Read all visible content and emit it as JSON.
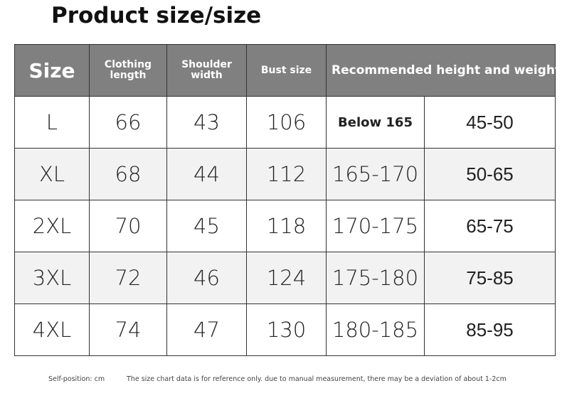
{
  "title": "Product size/size",
  "table": {
    "header": [
      "Size",
      "Clothing length",
      "Shoulder width",
      "Bust size",
      "Recommended height and weight (kg"
    ],
    "rows": [
      [
        "L",
        "66",
        "43",
        "106",
        "Below 165",
        "45-50"
      ],
      [
        "XL",
        "68",
        "44",
        "112",
        "165-170",
        "50-65"
      ],
      [
        "2XL",
        "70",
        "45",
        "118",
        "170-175",
        "65-75"
      ],
      [
        "3XL",
        "72",
        "46",
        "124",
        "175-180",
        "75-85"
      ],
      [
        "4XL",
        "74",
        "47",
        "130",
        "180-185",
        "85-95"
      ]
    ]
  },
  "footer": {
    "unit": "Self-position: cm",
    "note": "The size chart data is for reference only. due to manual measurement, there may be a deviation of about 1-2cm"
  }
}
